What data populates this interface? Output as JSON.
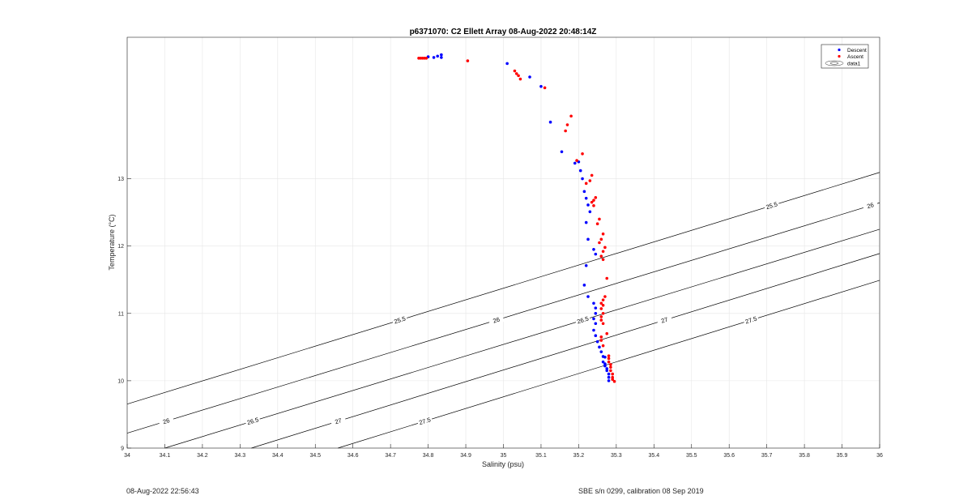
{
  "footer": {
    "timestamp": "08-Aug-2022 22:56:43",
    "calibration": "SBE s/n 0299, calibration 08 Sep 2019"
  },
  "chart_data": {
    "type": "scatter",
    "title": "p6371070: C2 Ellett Array 08-Aug-2022 20:48:14Z",
    "xlabel": "Salinity (psu)",
    "ylabel": "Temperature (°C)",
    "xlim": [
      34,
      36
    ],
    "ylim": [
      9,
      15.1
    ],
    "x_ticks": [
      "34",
      "34.1",
      "34.2",
      "34.3",
      "34.4",
      "34.5",
      "34.6",
      "34.7",
      "34.8",
      "34.9",
      "35",
      "35.1",
      "35.2",
      "35.3",
      "35.4",
      "35.5",
      "35.6",
      "35.7",
      "35.8",
      "35.9",
      "36"
    ],
    "y_ticks": [
      "9",
      "10",
      "11",
      "12",
      "13"
    ],
    "grid": true,
    "legend_position": "top-right",
    "legend": [
      "Descent",
      "Ascent",
      "data1"
    ],
    "series": [
      {
        "name": "Descent",
        "color": "#0000ff",
        "points": [
          [
            34.8,
            14.81
          ],
          [
            34.815,
            14.8
          ],
          [
            34.825,
            14.82
          ],
          [
            34.835,
            14.84
          ],
          [
            34.835,
            14.8
          ],
          [
            35.01,
            14.71
          ],
          [
            35.07,
            14.51
          ],
          [
            35.1,
            14.37
          ],
          [
            35.125,
            13.84
          ],
          [
            35.155,
            13.4
          ],
          [
            35.19,
            13.23
          ],
          [
            35.2,
            13.25
          ],
          [
            35.205,
            13.12
          ],
          [
            35.21,
            13.0
          ],
          [
            35.215,
            12.81
          ],
          [
            35.22,
            12.71
          ],
          [
            35.225,
            12.61
          ],
          [
            35.23,
            12.51
          ],
          [
            35.22,
            12.35
          ],
          [
            35.225,
            12.1
          ],
          [
            35.24,
            11.95
          ],
          [
            35.245,
            11.88
          ],
          [
            35.22,
            11.71
          ],
          [
            35.215,
            11.42
          ],
          [
            35.225,
            11.25
          ],
          [
            35.24,
            11.15
          ],
          [
            35.245,
            11.08
          ],
          [
            35.245,
            11.0
          ],
          [
            35.24,
            10.92
          ],
          [
            35.245,
            10.85
          ],
          [
            35.24,
            10.75
          ],
          [
            35.245,
            10.67
          ],
          [
            35.25,
            10.58
          ],
          [
            35.255,
            10.5
          ],
          [
            35.26,
            10.43
          ],
          [
            35.265,
            10.36
          ],
          [
            35.27,
            10.35
          ],
          [
            35.265,
            10.28
          ],
          [
            35.27,
            10.25
          ],
          [
            35.27,
            10.22
          ],
          [
            35.275,
            10.18
          ],
          [
            35.275,
            10.15
          ],
          [
            35.28,
            10.1
          ],
          [
            35.28,
            10.05
          ],
          [
            35.28,
            10.0
          ]
        ]
      },
      {
        "name": "Ascent",
        "color": "#ff0000",
        "points": [
          [
            34.775,
            14.79
          ],
          [
            34.78,
            14.79
          ],
          [
            34.785,
            14.79
          ],
          [
            34.79,
            14.79
          ],
          [
            34.795,
            14.79
          ],
          [
            34.905,
            14.75
          ],
          [
            35.03,
            14.6
          ],
          [
            35.035,
            14.56
          ],
          [
            35.04,
            14.53
          ],
          [
            35.045,
            14.48
          ],
          [
            35.11,
            14.35
          ],
          [
            35.18,
            13.93
          ],
          [
            35.17,
            13.8
          ],
          [
            35.165,
            13.71
          ],
          [
            35.195,
            13.27
          ],
          [
            35.21,
            13.37
          ],
          [
            35.235,
            13.05
          ],
          [
            35.23,
            12.97
          ],
          [
            35.22,
            12.93
          ],
          [
            35.245,
            12.72
          ],
          [
            35.24,
            12.68
          ],
          [
            35.235,
            12.65
          ],
          [
            35.24,
            12.6
          ],
          [
            35.255,
            12.4
          ],
          [
            35.25,
            12.33
          ],
          [
            35.265,
            12.18
          ],
          [
            35.26,
            12.1
          ],
          [
            35.255,
            12.05
          ],
          [
            35.27,
            11.98
          ],
          [
            35.265,
            11.92
          ],
          [
            35.26,
            11.85
          ],
          [
            35.265,
            11.8
          ],
          [
            35.275,
            11.52
          ],
          [
            35.27,
            11.25
          ],
          [
            35.265,
            11.2
          ],
          [
            35.26,
            11.15
          ],
          [
            35.265,
            11.12
          ],
          [
            35.26,
            11.07
          ],
          [
            35.265,
            11.0
          ],
          [
            35.26,
            10.95
          ],
          [
            35.26,
            10.9
          ],
          [
            35.265,
            10.85
          ],
          [
            35.275,
            10.7
          ],
          [
            35.26,
            10.65
          ],
          [
            35.26,
            10.6
          ],
          [
            35.265,
            10.52
          ],
          [
            35.28,
            10.37
          ],
          [
            35.28,
            10.33
          ],
          [
            35.28,
            10.28
          ],
          [
            35.285,
            10.24
          ],
          [
            35.285,
            10.2
          ],
          [
            35.285,
            10.15
          ],
          [
            35.29,
            10.1
          ],
          [
            35.29,
            10.05
          ],
          [
            35.29,
            10.02
          ],
          [
            35.295,
            9.99
          ]
        ]
      }
    ],
    "contours": [
      {
        "label": "25.5",
        "s0": 33.62,
        "slope": 1.72
      },
      {
        "label": "26",
        "s0": 33.87,
        "slope": 1.71
      },
      {
        "label": "26.5",
        "s0": 34.1,
        "slope": 1.71
      },
      {
        "label": "27",
        "s0": 34.33,
        "slope": 1.73
      },
      {
        "label": "27.5",
        "s0": 34.56,
        "slope": 1.73
      }
    ]
  }
}
